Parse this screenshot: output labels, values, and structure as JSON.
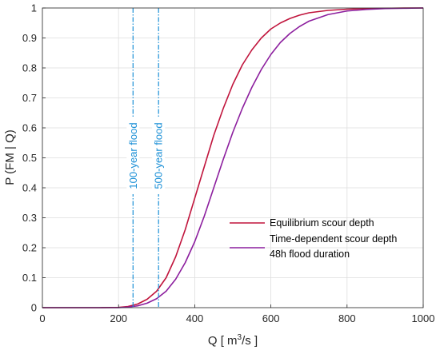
{
  "chart_data": {
    "type": "line",
    "xlabel_prefix": "Q [ m",
    "xlabel_sup": "3",
    "xlabel_suffix": "/s ]",
    "ylabel": "P (FM | Q)",
    "xlim": [
      0,
      1000
    ],
    "ylim": [
      0,
      1
    ],
    "xticks": [
      0,
      200,
      400,
      600,
      800,
      1000
    ],
    "yticks": [
      0,
      0.1,
      0.2,
      0.3,
      0.4,
      0.5,
      0.6,
      0.7,
      0.8,
      0.9,
      1
    ],
    "xtick_labels": [
      "0",
      "200",
      "400",
      "600",
      "800",
      "1000"
    ],
    "ytick_labels": [
      "0",
      "0.1",
      "0.2",
      "0.3",
      "0.4",
      "0.5",
      "0.6",
      "0.7",
      "0.8",
      "0.9",
      "1"
    ],
    "grid": true,
    "legend_position": "lower-right",
    "series": [
      {
        "name": "Equilibrium scour depth",
        "color": "#c0143c",
        "x": [
          0,
          100,
          150,
          200,
          225,
          250,
          275,
          300,
          325,
          350,
          375,
          400,
          425,
          450,
          475,
          500,
          525,
          550,
          575,
          600,
          625,
          650,
          675,
          700,
          750,
          800,
          850,
          900,
          950,
          1000
        ],
        "y": [
          0,
          0,
          0,
          0.001,
          0.004,
          0.012,
          0.028,
          0.055,
          0.1,
          0.17,
          0.26,
          0.365,
          0.47,
          0.575,
          0.665,
          0.745,
          0.81,
          0.86,
          0.9,
          0.93,
          0.95,
          0.965,
          0.976,
          0.984,
          0.992,
          0.996,
          0.998,
          0.999,
          1.0,
          1.0
        ]
      },
      {
        "name": "Time-dependent scour depth",
        "name_line2": "48h flood duration",
        "color": "#8c1e9e",
        "x": [
          0,
          100,
          150,
          200,
          225,
          250,
          275,
          300,
          325,
          350,
          375,
          400,
          425,
          450,
          475,
          500,
          525,
          550,
          575,
          600,
          625,
          650,
          675,
          700,
          750,
          800,
          850,
          900,
          950,
          1000
        ],
        "y": [
          0,
          0,
          0,
          0,
          0.002,
          0.006,
          0.015,
          0.03,
          0.055,
          0.095,
          0.15,
          0.22,
          0.305,
          0.4,
          0.495,
          0.585,
          0.665,
          0.735,
          0.795,
          0.845,
          0.885,
          0.915,
          0.938,
          0.956,
          0.978,
          0.99,
          0.995,
          0.998,
          0.999,
          1.0
        ]
      }
    ],
    "vertical_lines": [
      {
        "x": 238,
        "label": "100-year flood",
        "color": "#1a8fd6"
      },
      {
        "x": 305,
        "label": "500-year flood",
        "color": "#1a8fd6"
      }
    ]
  }
}
